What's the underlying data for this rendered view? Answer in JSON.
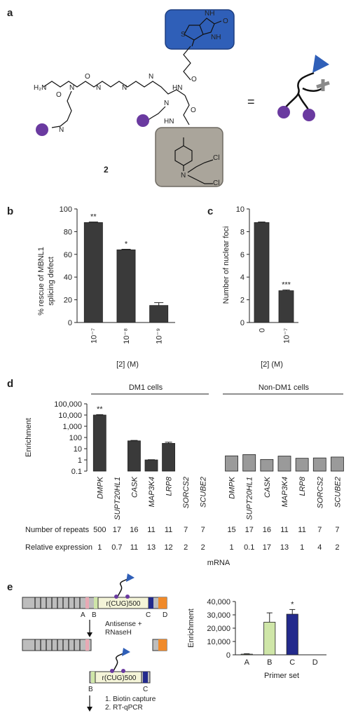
{
  "panel_a": {
    "label": "a",
    "compound_label": "2",
    "equals": "=",
    "atoms": {
      "o": "O",
      "nh": "NH",
      "hn": "HN",
      "h": "H",
      "s": "S",
      "h2n": "H₂N",
      "n": "N",
      "cl": "Cl"
    }
  },
  "panel_b": {
    "label": "b",
    "ylabel_line1": "% rescue of MBNL1",
    "ylabel_line2": "splicing defect",
    "xlabel": "[2] (M)"
  },
  "panel_c": {
    "label": "c",
    "ylabel": "Number of nuclear foci",
    "xlabel": "[2] (M)"
  },
  "panel_d": {
    "label": "d",
    "group1": "DM1 cells",
    "group2": "Non-DM1 cells",
    "ylabel": "Enrichment",
    "row1_label": "Number of repeats",
    "row2_label": "Relative expression",
    "xlabel": "mRNA"
  },
  "panel_e": {
    "label": "e",
    "repeat_label": "r(CUG)500",
    "site_a": "A",
    "site_b": "B",
    "site_c": "C",
    "site_d": "D",
    "step1_line1": "Antisense +",
    "step1_line2": "RNaseH",
    "step2_line1": "1. Biotin capture",
    "step2_line2": "2. RT-qPCR",
    "ylabel": "Enrichment",
    "xlabel": "Primer set"
  },
  "chart_data": [
    {
      "type": "bar",
      "panel": "b",
      "categories": [
        "10⁻⁷",
        "10⁻⁸",
        "10⁻⁹"
      ],
      "values": [
        88,
        64,
        15
      ],
      "errors": [
        0.5,
        0.5,
        2.5
      ],
      "significance": [
        "**",
        "*",
        ""
      ],
      "yticks": [
        "0",
        "20",
        "40",
        "60",
        "80",
        "100"
      ],
      "ylim": [
        0,
        100
      ],
      "color": "#3a3a3a"
    },
    {
      "type": "bar",
      "panel": "c",
      "categories": [
        "0",
        "10⁻⁷"
      ],
      "values": [
        8.8,
        2.8
      ],
      "errors": [
        0.05,
        0.06
      ],
      "significance": [
        "",
        "***"
      ],
      "yticks": [
        "0",
        "2",
        "4",
        "6",
        "8",
        "10"
      ],
      "ylim": [
        0,
        10
      ],
      "color": "#3a3a3a"
    },
    {
      "type": "bar",
      "panel": "d",
      "log_scale": true,
      "ylim": [
        0.1,
        100000
      ],
      "yticks": [
        "0.1",
        "1",
        "10",
        "100",
        "1,000",
        "10,000",
        "100,000"
      ],
      "categories": [
        "DMPK",
        "SUPT20HL1",
        "CASK",
        "MAP3K4",
        "LRP8",
        "SORCS2",
        "SCUBE2",
        "DMPK",
        "SUPT20HL1",
        "CASK",
        "MAP3K4",
        "LRP8",
        "SORCS2",
        "SCUBE2"
      ],
      "values": [
        10000,
        null,
        50,
        1,
        30,
        null,
        null,
        2.3,
        3,
        1.1,
        2.2,
        1.4,
        1.5,
        1.8
      ],
      "errors_log": [
        0.04,
        0,
        0.04,
        0.02,
        0.1,
        0,
        0,
        0,
        0,
        0,
        0,
        0,
        0,
        0
      ],
      "significance": [
        "**",
        "",
        "",
        "",
        "",
        "",
        "",
        "",
        "",
        "",
        "",
        "",
        "",
        ""
      ],
      "colors": [
        "#3a3a3a",
        "#3a3a3a",
        "#3a3a3a",
        "#3a3a3a",
        "#3a3a3a",
        "#3a3a3a",
        "#3a3a3a",
        "#9a9a9a",
        "#9a9a9a",
        "#9a9a9a",
        "#9a9a9a",
        "#9a9a9a",
        "#9a9a9a",
        "#9a9a9a"
      ],
      "number_of_repeats": [
        "500",
        "17",
        "16",
        "11",
        "11",
        "7",
        "7",
        "15",
        "17",
        "16",
        "11",
        "11",
        "7",
        "7"
      ],
      "relative_expression": [
        "1",
        "0.7",
        "11",
        "13",
        "12",
        "2",
        "2",
        "1",
        "0.1",
        "17",
        "13",
        "1",
        "4",
        "2"
      ]
    },
    {
      "type": "bar",
      "panel": "e",
      "categories": [
        "A",
        "B",
        "C",
        "D"
      ],
      "values": [
        500,
        24500,
        30500,
        0
      ],
      "errors": [
        300,
        7000,
        3500,
        0
      ],
      "significance": [
        "",
        "",
        "*",
        ""
      ],
      "colors": [
        "#cfe6a8",
        "#cfe6a8",
        "#232a8c",
        "#ffffff"
      ],
      "yticks": [
        "0",
        "10,000",
        "20,000",
        "30,000",
        "40,000"
      ],
      "ylim": [
        0,
        40000
      ]
    }
  ]
}
